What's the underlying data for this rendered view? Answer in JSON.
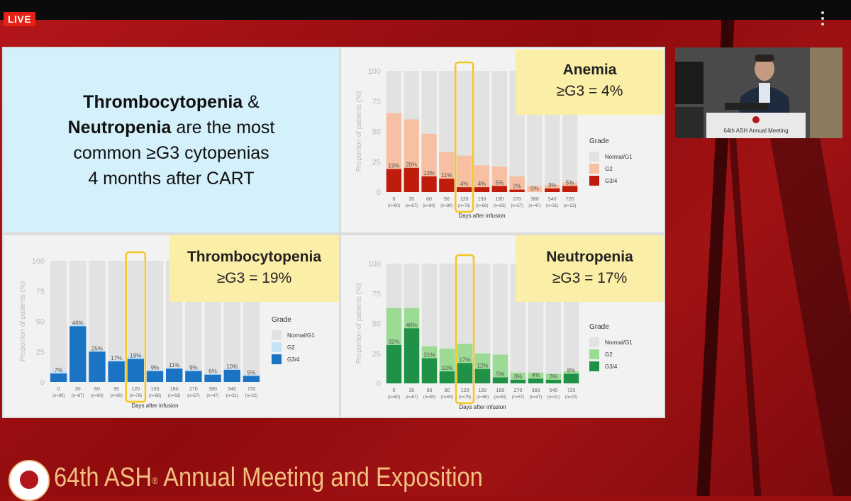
{
  "stream": {
    "live_label": "LIVE"
  },
  "slide": {
    "title_parts": [
      "Thrombocytopenia",
      " & ",
      "Neutropenia",
      " are the most",
      "common ≥G3 cytopenias",
      "4 months after CART"
    ],
    "y_ticks": [
      "100",
      "75",
      "50",
      "25",
      "0"
    ],
    "y_axis_label": "Proportion of patients (%)",
    "x_axis_label": "Days after infusion",
    "legend_title": "Grade",
    "legend_items": [
      "Normal/G1",
      "G2",
      "G3/4"
    ]
  },
  "chart_data": [
    {
      "type": "bar",
      "title": "Anemia",
      "callout_name": "Anemia",
      "callout_value": "≥G3  = 4%",
      "xlabel": "Days after infusion",
      "ylabel": "Proportion of patients (%)",
      "ylim": [
        0,
        100
      ],
      "categories": [
        "0",
        "30",
        "60",
        "90",
        "120",
        "150",
        "180",
        "270",
        "360",
        "540",
        "720"
      ],
      "n_labels": [
        "(n=80)",
        "(n=67)",
        "(n=80)",
        "(n=80)",
        "(n=76)",
        "(n=68)",
        "(n=63)",
        "(n=57)",
        "(n=47)",
        "(n=31)",
        "(n=22)"
      ],
      "series": [
        {
          "name": "G3/4",
          "values": [
            19,
            20,
            13,
            11,
            4,
            4,
            5,
            2,
            0,
            3,
            5
          ]
        },
        {
          "name": "G2",
          "values": [
            46,
            40,
            35,
            22,
            26,
            18,
            16,
            11,
            5,
            3,
            3
          ]
        }
      ],
      "data_labels": [
        "19%",
        "20%",
        "13%",
        "11%",
        "4%",
        "4%",
        "5%",
        "2%",
        "0%",
        "3%",
        "5%"
      ],
      "highlight_index": 4,
      "colors": {
        "normal": "#e2e2e2",
        "g2": "#f7c0a2",
        "g34": "#bf1c0c"
      },
      "legend": "right"
    },
    {
      "type": "bar",
      "title": "Thrombocytopenia",
      "callout_name": "Thrombocytopenia",
      "callout_value": "≥G3  = 19%",
      "xlabel": "Days after infusion",
      "ylabel": "Proportion of patients (%)",
      "ylim": [
        0,
        100
      ],
      "categories": [
        "0",
        "30",
        "60",
        "90",
        "120",
        "150",
        "180",
        "270",
        "360",
        "540",
        "720"
      ],
      "n_labels": [
        "(n=80)",
        "(n=67)",
        "(n=80)",
        "(n=80)",
        "(n=76)",
        "(n=68)",
        "(n=63)",
        "(n=57)",
        "(n=47)",
        "(n=31)",
        "(n=22)"
      ],
      "series": [
        {
          "name": "G3/4",
          "values": [
            7,
            46,
            25,
            17,
            19,
            9,
            11,
            9,
            6,
            10,
            5
          ]
        },
        {
          "name": "G2",
          "values": [
            2,
            1,
            1,
            1,
            3,
            1,
            1,
            1,
            1,
            1,
            1
          ]
        }
      ],
      "data_labels": [
        "7%",
        "46%",
        "25%",
        "17%",
        "19%",
        "9%",
        "11%",
        "9%",
        "6%",
        "10%",
        "5%"
      ],
      "highlight_index": 4,
      "colors": {
        "normal": "#e2e2e2",
        "g2": "#c6e2f7",
        "g34": "#1a73c3"
      },
      "legend": "right"
    },
    {
      "type": "bar",
      "title": "Neutropenia",
      "callout_name": "Neutropenia",
      "callout_value": "≥G3  = 17%",
      "xlabel": "Days after infusion",
      "ylabel": "Proportion of patients (%)",
      "ylim": [
        0,
        100
      ],
      "categories": [
        "0",
        "30",
        "60",
        "90",
        "120",
        "150",
        "180",
        "270",
        "360",
        "540",
        "720"
      ],
      "n_labels": [
        "(n=80)",
        "(n=67)",
        "(n=80)",
        "(n=80)",
        "(n=75)",
        "(n=68)",
        "(n=63)",
        "(n=57)",
        "(n=47)",
        "(n=31)",
        "(n=22)"
      ],
      "series": [
        {
          "name": "G3/4",
          "values": [
            32,
            46,
            21,
            10,
            17,
            12,
            5,
            3,
            4,
            3,
            8
          ]
        },
        {
          "name": "G2",
          "values": [
            31,
            17,
            10,
            19,
            16,
            13,
            19,
            6,
            5,
            5,
            2
          ]
        }
      ],
      "data_labels": [
        "32%",
        "46%",
        "21%",
        "10%",
        "17%",
        "12%",
        "5%",
        "3%",
        "4%",
        "3%",
        "8%"
      ],
      "highlight_index": 4,
      "colors": {
        "normal": "#e2e2e2",
        "g2": "#9bdb94",
        "g34": "#1f9247"
      },
      "legend": "right"
    }
  ],
  "camera": {
    "podium_text": "64th ASH Annual Meeting"
  },
  "footer": {
    "meeting_prefix": "64th ASH",
    "registered": "®",
    "meeting_suffix": " Annual Meeting and Exposition"
  }
}
